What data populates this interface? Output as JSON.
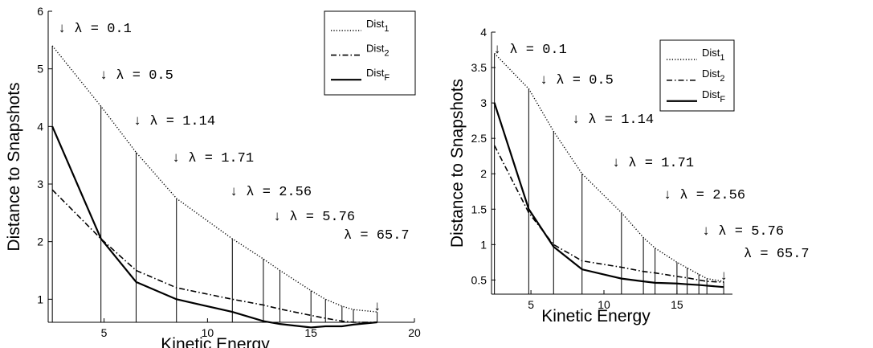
{
  "chart_data": [
    {
      "type": "line",
      "xlabel": "Kinetic Energy",
      "ylabel": "Distance to Snapshots",
      "xlim": [
        2.3,
        20
      ],
      "ylim": [
        0.6,
        6
      ],
      "xticks": [
        5,
        10,
        15,
        20
      ],
      "yticks": [
        1,
        2,
        3,
        4,
        5,
        6
      ],
      "x": [
        2.5,
        4.85,
        6.55,
        8.5,
        11.2,
        12.7,
        13.5,
        15.0,
        15.7,
        16.5,
        17.05,
        18.2
      ],
      "series": [
        {
          "name": "Dist_1",
          "style": "dotted",
          "values": [
            5.4,
            4.35,
            3.55,
            2.75,
            2.05,
            1.7,
            1.5,
            1.15,
            1.0,
            0.88,
            0.82,
            0.78
          ]
        },
        {
          "name": "Dist_2",
          "style": "dashdot",
          "values": [
            2.9,
            2.05,
            1.5,
            1.2,
            1.0,
            0.9,
            0.83,
            0.72,
            0.67,
            0.62,
            0.6,
            0.6
          ]
        },
        {
          "name": "Dist_F",
          "style": "solid",
          "values": [
            4.0,
            2.05,
            1.3,
            1.0,
            0.78,
            0.62,
            0.57,
            0.51,
            0.53,
            0.53,
            0.56,
            0.6
          ]
        }
      ],
      "annotations": [
        {
          "text": "λ = 0.1",
          "x": 2.5,
          "y": 5.4
        },
        {
          "text": "λ = 0.5",
          "x": 4.85,
          "y": 4.35
        },
        {
          "text": "λ = 1.14",
          "x": 6.55,
          "y": 3.55
        },
        {
          "text": "λ = 1.71",
          "x": 8.5,
          "y": 2.75
        },
        {
          "text": "λ = 2.56",
          "x": 11.2,
          "y": 2.05
        },
        {
          "text": "λ = 5.76",
          "x": 13.5,
          "y": 1.5
        },
        {
          "text": "λ = 65.7",
          "x": 18.2,
          "y": 0.78,
          "arrow_below_text": true
        }
      ],
      "legend": {
        "placement": "top-right",
        "entries": [
          "Dist_1",
          "Dist_2",
          "Dist_F"
        ]
      }
    },
    {
      "type": "line",
      "xlabel": "Kinetic Energy",
      "ylabel": "Distance to Snapshots",
      "xlim": [
        2.3,
        18.8
      ],
      "ylim": [
        0.3,
        4
      ],
      "xticks": [
        5,
        10,
        15
      ],
      "yticks": [
        0.5,
        1,
        1.5,
        2,
        2.5,
        3,
        3.5,
        4
      ],
      "x": [
        2.5,
        4.85,
        6.55,
        8.5,
        11.2,
        12.7,
        13.5,
        15.0,
        15.7,
        16.5,
        17.05,
        18.2
      ],
      "series": [
        {
          "name": "Dist_1",
          "style": "dotted",
          "values": [
            3.7,
            3.2,
            2.6,
            2.0,
            1.45,
            1.1,
            0.95,
            0.75,
            0.67,
            0.58,
            0.52,
            0.48
          ]
        },
        {
          "name": "Dist_2",
          "style": "dashdot",
          "values": [
            2.4,
            1.45,
            1.0,
            0.77,
            0.68,
            0.62,
            0.6,
            0.55,
            0.53,
            0.5,
            0.48,
            0.47
          ]
        },
        {
          "name": "Dist_F",
          "style": "solid",
          "values": [
            3.0,
            1.5,
            0.97,
            0.65,
            0.52,
            0.48,
            0.46,
            0.45,
            0.44,
            0.43,
            0.42,
            0.4
          ]
        }
      ],
      "annotations": [
        {
          "text": "λ = 0.1",
          "x": 2.5,
          "y": 3.7
        },
        {
          "text": "λ = 0.5",
          "x": 4.85,
          "y": 3.2
        },
        {
          "text": "λ = 1.14",
          "x": 6.55,
          "y": 2.6
        },
        {
          "text": "λ = 1.71",
          "x": 8.5,
          "y": 2.0
        },
        {
          "text": "λ = 2.56",
          "x": 11.2,
          "y": 1.45
        },
        {
          "text": "λ = 5.76",
          "x": 13.5,
          "y": 0.95
        },
        {
          "text": "λ = 65.7",
          "x": 18.2,
          "y": 0.48,
          "arrow_below_text": true
        }
      ],
      "legend": {
        "placement": "top-right",
        "entries": [
          "Dist_1",
          "Dist_2",
          "Dist_F"
        ]
      }
    }
  ]
}
